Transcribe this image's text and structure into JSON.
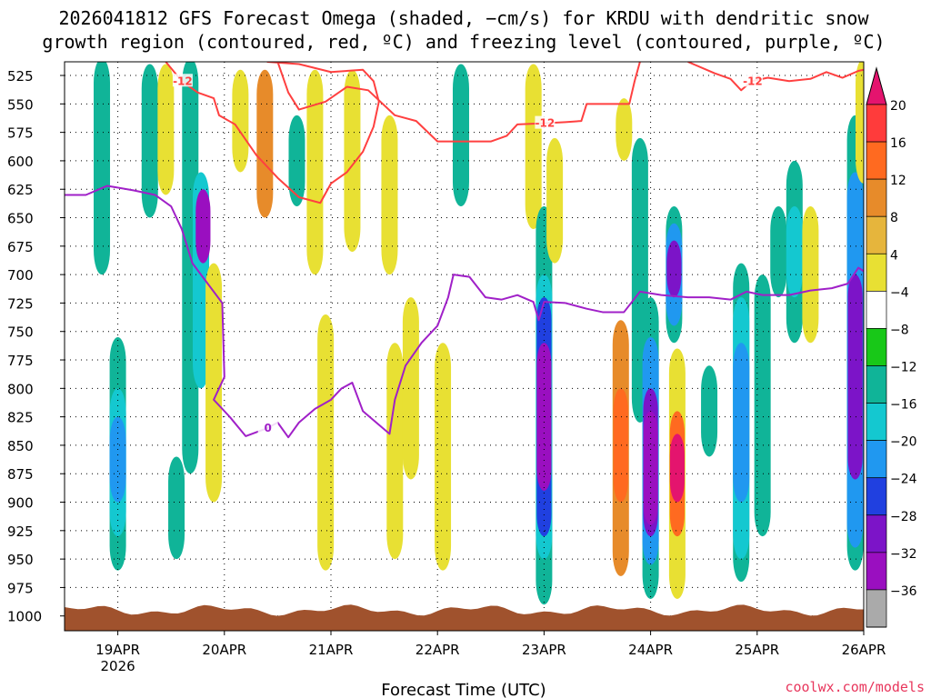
{
  "chart_data": {
    "type": "heatmap",
    "title_line1": "2026041812 GFS Forecast Omega (shaded, −cm/s) for KRDU with dendritic snow",
    "title_line2": "growth region (contoured, red, ºC) and freezing level (contoured, purple, ºC)",
    "xlabel": "Forecast Time (UTC)",
    "credit": "coolwx.com/models",
    "x_ticks": [
      "19APR",
      "20APR",
      "21APR",
      "22APR",
      "23APR",
      "24APR",
      "25APR",
      "26APR"
    ],
    "x_year": "2026",
    "x_range_days": [
      -0.5,
      7.0
    ],
    "y_ticks": [
      "525",
      "550",
      "575",
      "600",
      "625",
      "650",
      "675",
      "700",
      "725",
      "750",
      "775",
      "800",
      "825",
      "850",
      "875",
      "900",
      "925",
      "950",
      "975",
      "1000"
    ],
    "y_range_hpa": [
      513,
      1013
    ],
    "colorbar": {
      "labels": [
        "20",
        "16",
        "12",
        "8",
        "4",
        "−4",
        "−8",
        "−12",
        "−16",
        "−20",
        "−24",
        "−28",
        "−32",
        "−36"
      ],
      "colors": [
        "#e4146e",
        "#ff3b3b",
        "#ff6a20",
        "#e78b2a",
        "#e6b53c",
        "#e8e033",
        "#ffffff",
        "#18c818",
        "#10b498",
        "#14c8d0",
        "#2098f0",
        "#2040e0",
        "#7c14c8",
        "#9a0fc0",
        "#aaaaaa",
        "#000000"
      ]
    },
    "omega_cells": [
      {
        "day": 0.0,
        "p_top": 755,
        "p_bot": 960,
        "value": -8
      },
      {
        "day": 0.0,
        "p_top": 800,
        "p_bot": 930,
        "value": -12
      },
      {
        "day": 0.0,
        "p_top": 825,
        "p_bot": 900,
        "value": -16
      },
      {
        "day": -0.15,
        "p_top": 510,
        "p_bot": 700,
        "value": -8
      },
      {
        "day": 0.3,
        "p_top": 515,
        "p_bot": 650,
        "value": -8
      },
      {
        "day": 0.45,
        "p_top": 515,
        "p_bot": 630,
        "value": 4
      },
      {
        "day": 0.55,
        "p_top": 860,
        "p_bot": 950,
        "value": -8
      },
      {
        "day": 0.68,
        "p_top": 510,
        "p_bot": 875,
        "value": -8
      },
      {
        "day": 0.78,
        "p_top": 610,
        "p_bot": 800,
        "value": -12
      },
      {
        "day": 0.8,
        "p_top": 625,
        "p_bot": 690,
        "value": -28
      },
      {
        "day": 0.9,
        "p_top": 690,
        "p_bot": 900,
        "value": 4
      },
      {
        "day": 1.15,
        "p_top": 520,
        "p_bot": 610,
        "value": 4
      },
      {
        "day": 1.38,
        "p_top": 520,
        "p_bot": 650,
        "value": 8
      },
      {
        "day": 1.68,
        "p_top": 560,
        "p_bot": 640,
        "value": -8
      },
      {
        "day": 1.85,
        "p_top": 520,
        "p_bot": 700,
        "value": 4
      },
      {
        "day": 1.95,
        "p_top": 735,
        "p_bot": 960,
        "value": 4
      },
      {
        "day": 2.2,
        "p_top": 520,
        "p_bot": 680,
        "value": 4
      },
      {
        "day": 2.55,
        "p_top": 560,
        "p_bot": 700,
        "value": 4
      },
      {
        "day": 2.6,
        "p_top": 760,
        "p_bot": 950,
        "value": 4
      },
      {
        "day": 2.75,
        "p_top": 720,
        "p_bot": 880,
        "value": 4
      },
      {
        "day": 3.05,
        "p_top": 760,
        "p_bot": 960,
        "value": 4
      },
      {
        "day": 3.22,
        "p_top": 515,
        "p_bot": 640,
        "value": -8
      },
      {
        "day": 3.9,
        "p_top": 515,
        "p_bot": 660,
        "value": 4
      },
      {
        "day": 4.0,
        "p_top": 640,
        "p_bot": 990,
        "value": -8
      },
      {
        "day": 4.0,
        "p_top": 700,
        "p_bot": 950,
        "value": -12
      },
      {
        "day": 4.0,
        "p_top": 720,
        "p_bot": 930,
        "value": -20
      },
      {
        "day": 4.0,
        "p_top": 760,
        "p_bot": 890,
        "value": -28
      },
      {
        "day": 4.1,
        "p_top": 580,
        "p_bot": 690,
        "value": 4
      },
      {
        "day": 4.75,
        "p_top": 545,
        "p_bot": 600,
        "value": 4
      },
      {
        "day": 4.72,
        "p_top": 740,
        "p_bot": 965,
        "value": 8
      },
      {
        "day": 4.72,
        "p_top": 800,
        "p_bot": 900,
        "value": 12
      },
      {
        "day": 4.9,
        "p_top": 580,
        "p_bot": 830,
        "value": -8
      },
      {
        "day": 5.0,
        "p_top": 720,
        "p_bot": 985,
        "value": -8
      },
      {
        "day": 5.0,
        "p_top": 755,
        "p_bot": 955,
        "value": -16
      },
      {
        "day": 5.0,
        "p_top": 800,
        "p_bot": 930,
        "value": -24
      },
      {
        "day": 5.0,
        "p_top": 820,
        "p_bot": 920,
        "value": -28
      },
      {
        "day": 5.22,
        "p_top": 640,
        "p_bot": 760,
        "value": -8
      },
      {
        "day": 5.22,
        "p_top": 655,
        "p_bot": 745,
        "value": -16
      },
      {
        "day": 5.22,
        "p_top": 670,
        "p_bot": 720,
        "value": -24
      },
      {
        "day": 5.25,
        "p_top": 765,
        "p_bot": 985,
        "value": 4
      },
      {
        "day": 5.25,
        "p_top": 820,
        "p_bot": 930,
        "value": 12
      },
      {
        "day": 5.25,
        "p_top": 840,
        "p_bot": 900,
        "value": 20
      },
      {
        "day": 5.55,
        "p_top": 780,
        "p_bot": 860,
        "value": -8
      },
      {
        "day": 5.85,
        "p_top": 690,
        "p_bot": 970,
        "value": -8
      },
      {
        "day": 5.85,
        "p_top": 720,
        "p_bot": 950,
        "value": -12
      },
      {
        "day": 5.85,
        "p_top": 760,
        "p_bot": 900,
        "value": -16
      },
      {
        "day": 6.05,
        "p_top": 700,
        "p_bot": 930,
        "value": -8
      },
      {
        "day": 6.2,
        "p_top": 640,
        "p_bot": 720,
        "value": -8
      },
      {
        "day": 6.35,
        "p_top": 600,
        "p_bot": 760,
        "value": -8
      },
      {
        "day": 6.35,
        "p_top": 640,
        "p_bot": 720,
        "value": -12
      },
      {
        "day": 6.5,
        "p_top": 640,
        "p_bot": 760,
        "value": 4
      },
      {
        "day": 6.92,
        "p_top": 560,
        "p_bot": 960,
        "value": -8
      },
      {
        "day": 6.92,
        "p_top": 610,
        "p_bot": 940,
        "value": -16
      },
      {
        "day": 6.92,
        "p_top": 700,
        "p_bot": 880,
        "value": -24
      },
      {
        "day": 7.0,
        "p_top": 510,
        "p_bot": 620,
        "value": 4
      }
    ],
    "snow_growth_minus12": [
      {
        "label": "-12",
        "label_at": 1,
        "points": [
          [
            0.45,
            513
          ],
          [
            0.6,
            530
          ],
          [
            0.75,
            540
          ],
          [
            0.9,
            545
          ],
          [
            0.95,
            560
          ],
          [
            1.1,
            568
          ],
          [
            1.3,
            595
          ],
          [
            1.5,
            615
          ],
          [
            1.7,
            632
          ],
          [
            1.9,
            637
          ],
          [
            2.0,
            620
          ],
          [
            2.15,
            610
          ],
          [
            2.3,
            592
          ],
          [
            2.4,
            570
          ],
          [
            2.45,
            548
          ],
          [
            2.4,
            530
          ],
          [
            2.3,
            520
          ],
          [
            2.0,
            522
          ],
          [
            1.7,
            515
          ],
          [
            1.4,
            513
          ]
        ]
      },
      {
        "label": "-12",
        "label_at": 13,
        "points": [
          [
            1.5,
            513
          ],
          [
            1.6,
            540
          ],
          [
            1.7,
            555
          ],
          [
            1.95,
            548
          ],
          [
            2.15,
            535
          ],
          [
            2.35,
            538
          ],
          [
            2.6,
            560
          ],
          [
            2.8,
            565
          ],
          [
            3.0,
            583
          ],
          [
            3.25,
            583
          ],
          [
            3.5,
            583
          ],
          [
            3.65,
            578
          ],
          [
            3.75,
            568
          ],
          [
            4.0,
            567
          ],
          [
            4.2,
            566
          ],
          [
            4.35,
            565
          ],
          [
            4.4,
            550
          ],
          [
            4.6,
            550
          ],
          [
            4.8,
            550
          ],
          [
            4.85,
            530
          ],
          [
            4.9,
            513
          ]
        ]
      },
      {
        "label": "-12",
        "label_at": 4,
        "points": [
          [
            5.35,
            513
          ],
          [
            5.6,
            523
          ],
          [
            5.75,
            528
          ],
          [
            5.85,
            538
          ],
          [
            5.95,
            530
          ],
          [
            6.1,
            527
          ],
          [
            6.3,
            530
          ],
          [
            6.5,
            528
          ],
          [
            6.65,
            522
          ],
          [
            6.8,
            527
          ],
          [
            6.95,
            521
          ],
          [
            7.0,
            520
          ]
        ]
      }
    ],
    "freezing_level_0c": {
      "label": "0",
      "label_at": 14,
      "points": [
        [
          -0.5,
          630
        ],
        [
          -0.3,
          630
        ],
        [
          -0.1,
          622
        ],
        [
          0.15,
          626
        ],
        [
          0.35,
          630
        ],
        [
          0.5,
          640
        ],
        [
          0.6,
          660
        ],
        [
          0.7,
          690
        ],
        [
          0.82,
          705
        ],
        [
          0.98,
          725
        ],
        [
          1.0,
          790
        ],
        [
          0.9,
          810
        ],
        [
          1.05,
          825
        ],
        [
          1.2,
          842
        ],
        [
          1.4,
          835
        ],
        [
          1.5,
          830
        ],
        [
          1.6,
          843
        ],
        [
          1.7,
          830
        ],
        [
          1.85,
          818
        ],
        [
          2.0,
          810
        ],
        [
          2.1,
          800
        ],
        [
          2.2,
          795
        ],
        [
          2.3,
          820
        ],
        [
          2.45,
          832
        ],
        [
          2.55,
          840
        ],
        [
          2.6,
          810
        ],
        [
          2.7,
          780
        ],
        [
          2.85,
          760
        ],
        [
          3.0,
          745
        ],
        [
          3.1,
          720
        ],
        [
          3.15,
          700
        ],
        [
          3.3,
          702
        ],
        [
          3.45,
          720
        ],
        [
          3.6,
          722
        ],
        [
          3.75,
          718
        ],
        [
          3.9,
          724
        ],
        [
          3.95,
          740
        ],
        [
          4.0,
          724
        ],
        [
          4.2,
          725
        ],
        [
          4.4,
          730
        ],
        [
          4.55,
          733
        ],
        [
          4.75,
          733
        ],
        [
          4.9,
          715
        ],
        [
          5.1,
          718
        ],
        [
          5.35,
          720
        ],
        [
          5.55,
          720
        ],
        [
          5.75,
          722
        ],
        [
          5.9,
          715
        ],
        [
          6.05,
          718
        ],
        [
          6.3,
          718
        ],
        [
          6.5,
          714
        ],
        [
          6.7,
          712
        ],
        [
          6.85,
          708
        ],
        [
          6.95,
          694
        ],
        [
          7.0,
          697
        ]
      ]
    }
  }
}
